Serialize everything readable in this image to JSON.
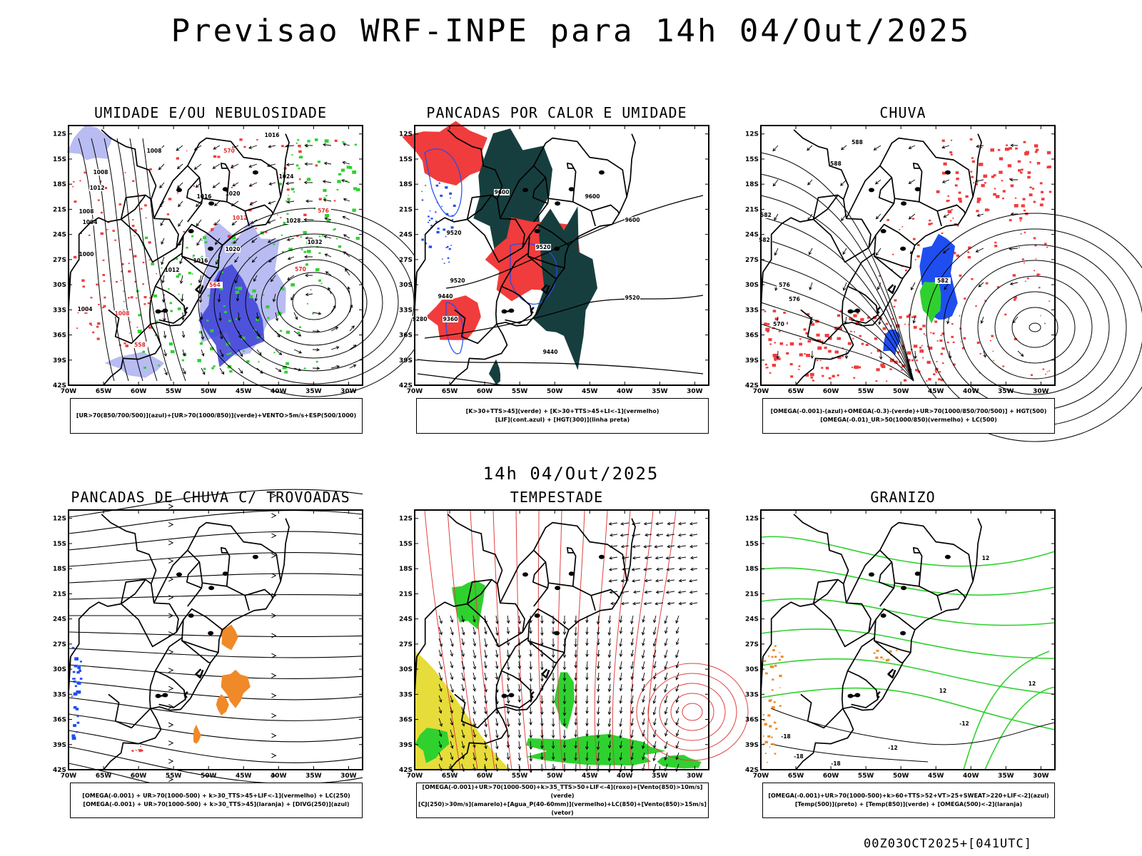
{
  "header": {
    "title": "Previsao WRF-INPE  para 14h 04/Out/2025",
    "mid_time": "14h 04/Out/2025",
    "footer": "00Z03OCT2025+[041UTC]"
  },
  "axes": {
    "lat_labels": [
      "12S",
      "15S",
      "18S",
      "21S",
      "24S",
      "27S",
      "30S",
      "33S",
      "36S",
      "39S",
      "42S"
    ],
    "lon_labels": [
      "70W",
      "65W",
      "60W",
      "55W",
      "50W",
      "45W",
      "40W",
      "35W",
      "30W"
    ]
  },
  "panels": [
    {
      "id": "umidade",
      "title": "UMIDADE E/OU NEBULOSIDADE",
      "legend": [
        "[UR>70(850/700/500)](azul)+[UR>70(1000/850)](verde)+VENTO>5m/s+ESP(500/1000)"
      ],
      "contour_labels": [
        "1016",
        "1008",
        "1008",
        "1012",
        "1016",
        "1020",
        "1024",
        "1028",
        "1032",
        "1020",
        "1016",
        "1012",
        "1008",
        "1004",
        "1000",
        "1004",
        "1008",
        "1012",
        "570",
        "564",
        "558",
        "576",
        "570"
      ]
    },
    {
      "id": "pancadas_calor",
      "title": "PANCADAS POR CALOR E UMIDADE",
      "legend": [
        "[K>30+TTS>45](verde) + [K>30+TTS>45+LI<-1](vermelho)",
        "[LIF](cont.azul) + [HGT(300)](linha preta)"
      ],
      "contour_labels": [
        "9600",
        "9600",
        "9600",
        "9520",
        "9520",
        "9520",
        "9520",
        "9440",
        "9440",
        "9360",
        "9280"
      ]
    },
    {
      "id": "chuva",
      "title": "CHUVA",
      "legend": [
        "[OMEGA(-0.001)-(azul)+OMEGA(-0.3)-(verde)+UR>70(1000/850/700/500)] + HGT(500)",
        "[OMEGA(-0.01)_UR>50(1000/850)(vermelho) + LC(500)"
      ],
      "contour_labels": [
        "588",
        "588",
        "582",
        "582",
        "576",
        "576",
        "570",
        "582"
      ]
    },
    {
      "id": "trovoadas",
      "title": "PANCADAS DE CHUVA C/ TROVOADAS",
      "legend": [
        "[OMEGA(-0.001) + UR>70(1000-500) + k>30_TTS>45+LIF<-1](vermelho) + LC(250)",
        "[OMEGA(-0.001) + UR>70(1000-500) + k>30_TTS>45](laranja) + [DIVG(250)](azul)"
      ],
      "contour_labels": []
    },
    {
      "id": "tempestade",
      "title": "TEMPESTADE",
      "legend": [
        "[OMEGA(-0.001)+UR>70(1000-500)+k>35_TTS>50+LIF<-4](roxo)+[Vento(850)>10m/s](verde)",
        "[CJ(250)>30m/s](amarelo)+[Agua_P(40-60mm)](vermelho)+LC(850)+[Vento(850)>15m/s](vetor)"
      ],
      "contour_labels": []
    },
    {
      "id": "granizo",
      "title": "GRANIZO",
      "legend": [
        "[OMEGA(-0.001)+UR>70(1000-500)+k>60+TTS>52+VT>25+SWEAT>220+LIF<-2](azul)",
        "[Temp(500)](preto) + [Temp(850)](verde) + [OMEGA(500)<-2](laranja)"
      ],
      "contour_labels": [
        "12",
        "12",
        "12",
        "-18",
        "-18",
        "-12",
        "-18",
        "-12"
      ]
    }
  ],
  "colors": {
    "blue_light": "#b8bcf2",
    "blue_dark": "#3b3fd6",
    "green": "#2fd12f",
    "red": "#f03c3c",
    "dark_teal": "#173e3e",
    "orange": "#f08a28",
    "yellow": "#e6dc3a",
    "blue_fill": "#1f4ef0"
  }
}
